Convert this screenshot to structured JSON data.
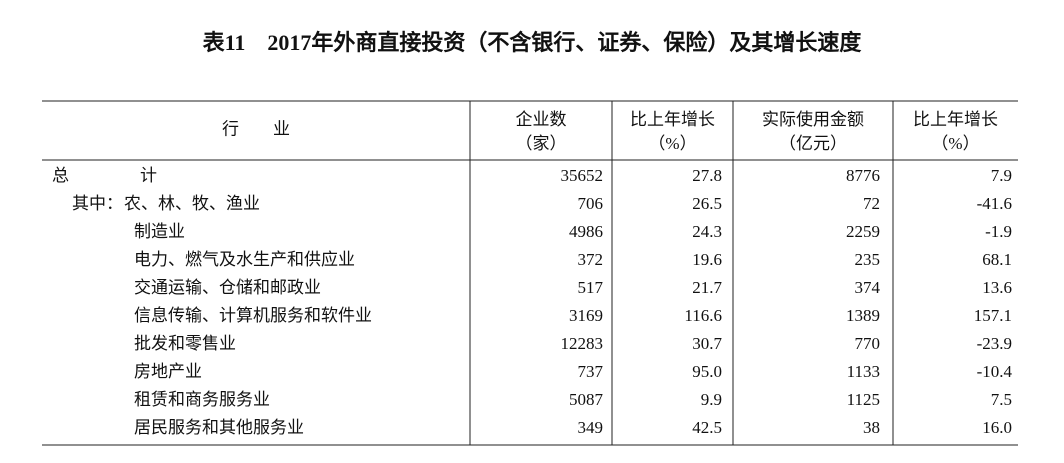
{
  "title": "表11　2017年外商直接投资（不含银行、证券、保险）及其增长速度",
  "table": {
    "columns": [
      {
        "lines": [
          "行　　业"
        ]
      },
      {
        "lines": [
          "企业数",
          "（家）"
        ]
      },
      {
        "lines": [
          "比上年增长",
          "（%）"
        ]
      },
      {
        "lines": [
          "实际使用金额",
          "（亿元）"
        ]
      },
      {
        "lines": [
          "比上年增长",
          "（%）"
        ]
      }
    ],
    "rows": [
      {
        "label": "总　　　计",
        "cells": [
          "35652",
          "27.8",
          "8776",
          "7.9"
        ]
      },
      {
        "prefix": "其中：",
        "label": "农、林、牧、渔业",
        "cells": [
          "706",
          "26.5",
          "72",
          "-41.6"
        ]
      },
      {
        "label": "制造业",
        "cells": [
          "4986",
          "24.3",
          "2259",
          "-1.9"
        ]
      },
      {
        "label": "电力、燃气及水生产和供应业",
        "cells": [
          "372",
          "19.6",
          "235",
          "68.1"
        ]
      },
      {
        "label": "交通运输、仓储和邮政业",
        "cells": [
          "517",
          "21.7",
          "374",
          "13.6"
        ]
      },
      {
        "label": "信息传输、计算机服务和软件业",
        "cells": [
          "3169",
          "116.6",
          "1389",
          "157.1"
        ]
      },
      {
        "label": "批发和零售业",
        "cells": [
          "12283",
          "30.7",
          "770",
          "-23.9"
        ]
      },
      {
        "label": "房地产业",
        "cells": [
          "737",
          "95.0",
          "1133",
          "-10.4"
        ]
      },
      {
        "label": "租赁和商务服务业",
        "cells": [
          "5087",
          "9.9",
          "1125",
          "7.5"
        ]
      },
      {
        "label": "居民服务和其他服务业",
        "cells": [
          "349",
          "42.5",
          "38",
          "16.0"
        ]
      }
    ]
  }
}
